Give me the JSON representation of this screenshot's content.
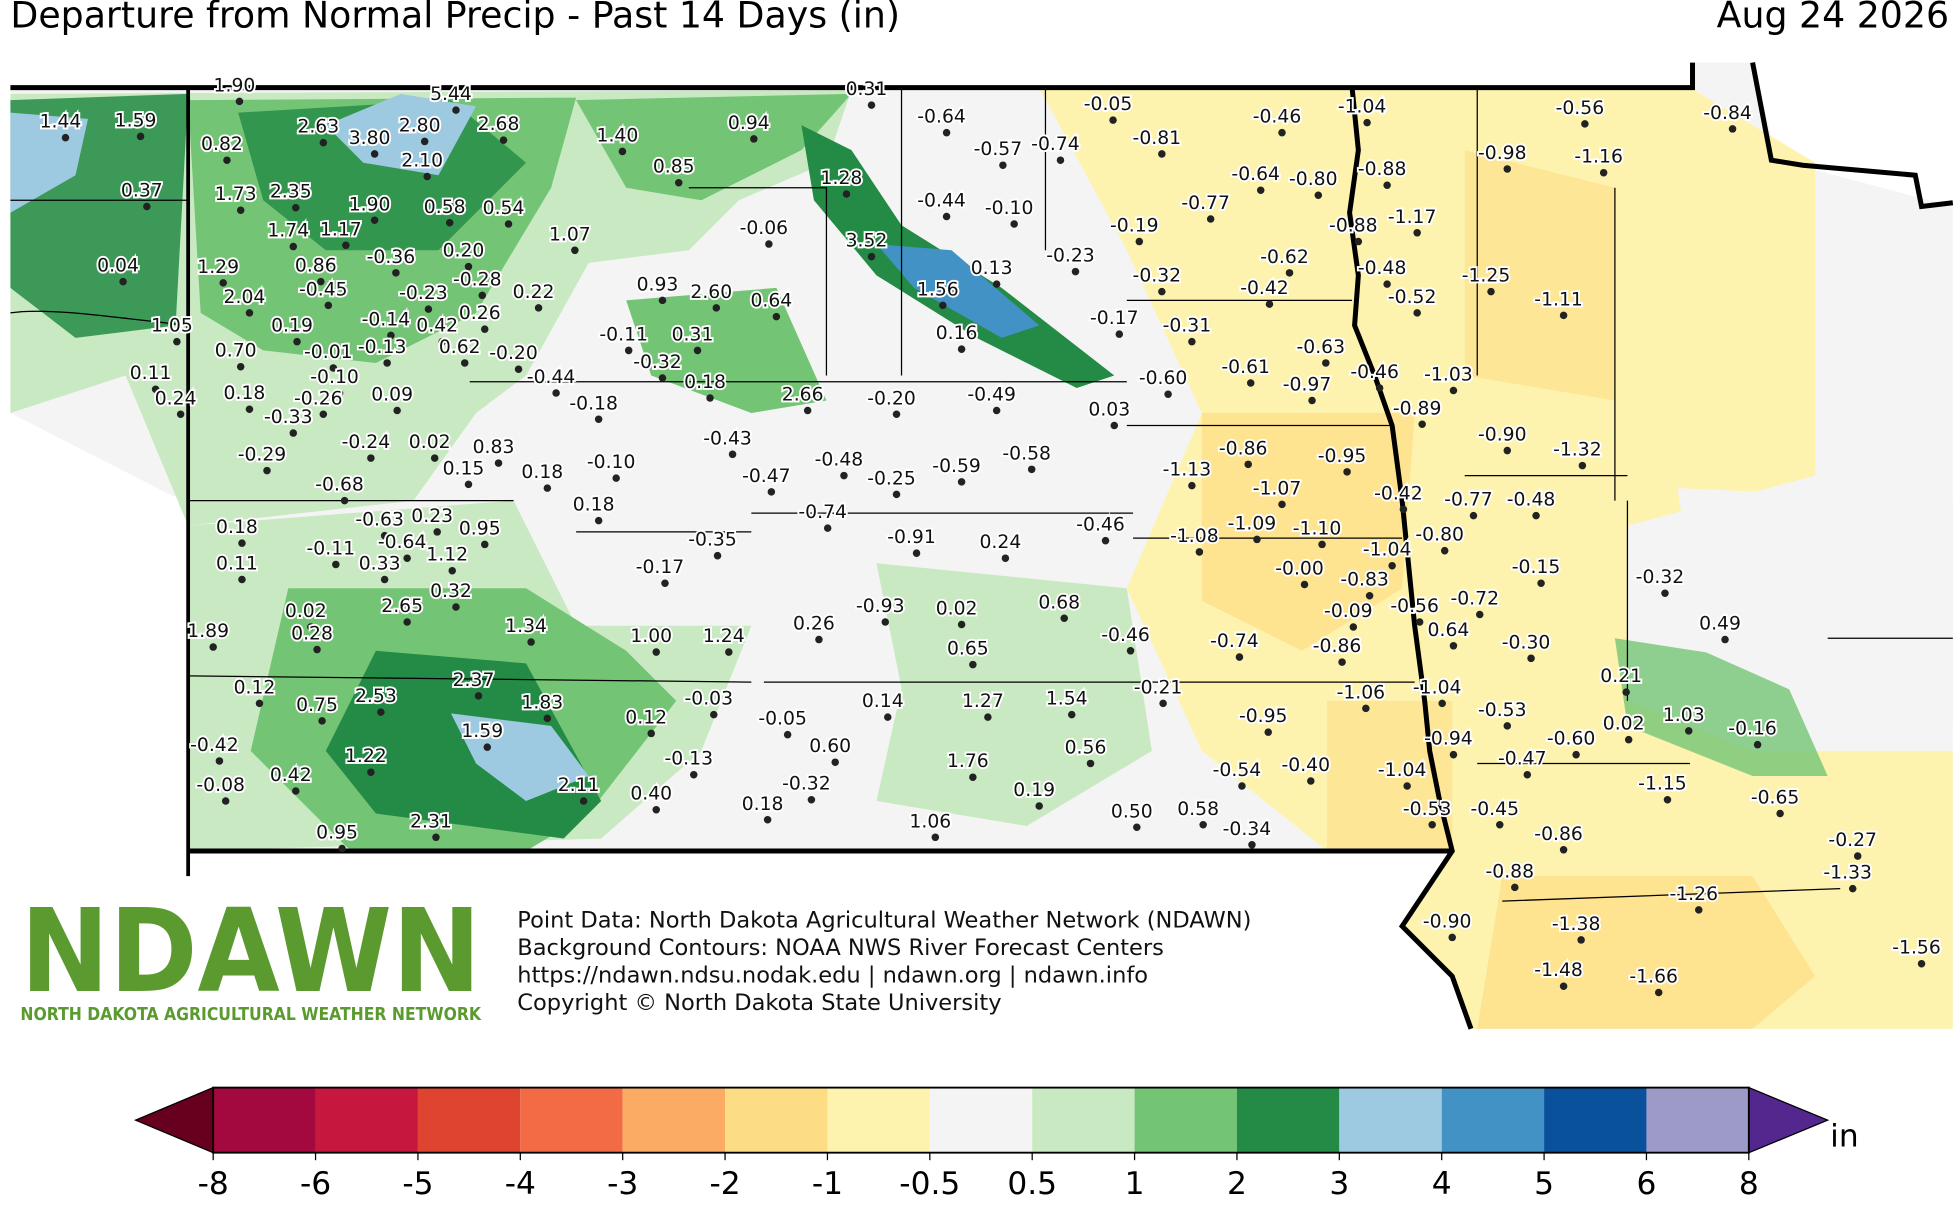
{
  "header": {
    "title": "Departure from Normal Precip - Past 14 Days (in)",
    "date": "Aug 24 2026"
  },
  "map": {
    "values": [
      1.44,
      1.59,
      1.9,
      5.44,
      0.31,
      -0.05,
      -1.04,
      -0.56,
      -0.84,
      0.82,
      2.63,
      3.8,
      2.8,
      2.68,
      1.4,
      0.94,
      -0.64,
      -0.46,
      0.37,
      2.1,
      0.85,
      -0.57,
      -0.74,
      -0.81,
      -0.98,
      -1.16,
      1.73,
      2.35,
      1.9,
      0.58,
      0.54,
      1.28,
      -0.44,
      -0.1,
      -0.64,
      -0.8,
      -0.88,
      1.74,
      1.17,
      1.07,
      -0.06,
      3.52,
      -0.77,
      -0.19,
      -0.88,
      -1.17,
      0.04,
      1.29,
      0.86,
      -0.36,
      0.2,
      0.13,
      -0.23,
      -0.62,
      -0.48,
      2.04,
      -0.45,
      -0.23,
      -0.28,
      0.22,
      0.93,
      2.6,
      0.64,
      1.56,
      -0.32,
      -0.42,
      -0.52,
      -1.25,
      -1.11,
      1.05,
      0.7,
      0.19,
      -0.14,
      0.42,
      0.26,
      -0.11,
      0.31,
      0.16,
      -0.17,
      -0.31,
      -0.63,
      -0.01,
      -0.13,
      0.62,
      -0.2,
      -0.32,
      -0.46,
      -1.03,
      0.11,
      0.18,
      -0.1,
      -0.26,
      0.09,
      -0.44,
      0.18,
      -0.18,
      2.66,
      -0.2,
      -0.49,
      0.03,
      -0.6,
      -0.61,
      -0.97,
      0.24,
      -0.33,
      -0.89,
      -0.9,
      -0.29,
      -0.24,
      0.02,
      0.83,
      -0.43,
      -0.48,
      -0.58,
      -0.86,
      -0.95,
      -1.32,
      -0.68,
      0.15,
      0.18,
      -0.1,
      -0.47,
      -0.25,
      -0.59,
      -1.13,
      -1.07,
      -0.42,
      -0.77,
      -0.48,
      -0.63,
      0.23,
      0.18,
      -0.74,
      -0.46,
      -1.09,
      -1.1,
      -1.08,
      -0.8,
      0.18,
      -0.11,
      -0.64,
      0.95,
      -0.35,
      -0.91,
      0.24,
      -1.04,
      0.11,
      0.33,
      1.12,
      -0.17,
      -0.0,
      -0.83,
      -0.15,
      -0.32,
      0.32,
      -0.72,
      0.68,
      -0.93,
      0.02,
      -0.09,
      -0.56,
      0.02,
      2.65,
      0.26,
      0.64,
      0.49,
      1.89,
      0.28,
      1.34,
      1.0,
      1.24,
      -0.46,
      -0.74,
      -0.86,
      -0.3,
      0.65,
      0.21,
      0.12,
      2.37,
      -0.21,
      -1.06,
      -1.04,
      0.75,
      2.53,
      1.83,
      -0.03,
      0.14,
      1.27,
      1.54,
      -0.53,
      1.03,
      -0.05,
      0.12,
      -0.95,
      0.02,
      -0.16,
      -0.6,
      -0.94,
      1.59,
      -0.42,
      0.6,
      0.56,
      1.22,
      1.76,
      -0.13,
      -0.47,
      -0.4,
      -0.54,
      -1.04,
      -0.08,
      0.42,
      2.11,
      -0.32,
      0.4,
      0.19,
      -1.15,
      -0.65,
      0.18,
      0.5,
      0.58,
      -0.53,
      -0.45,
      -0.86,
      2.31,
      1.06,
      -0.34,
      -0.27,
      0.95,
      -0.88,
      -1.33,
      -1.26,
      -0.9,
      -1.38,
      -1.48,
      -1.66,
      -1.56
    ],
    "value_labels": [
      "1.44",
      "1.59",
      "1.90",
      "5.44",
      "0.31",
      "-0.05",
      "-1.04",
      "-0.56",
      "-0.84",
      "0.82",
      "2.63",
      "3.80",
      "2.80",
      "2.68",
      "1.40",
      "0.94",
      "-0.64",
      "-0.46",
      "0.37",
      "2.10",
      "0.85",
      "-0.57",
      "-0.74",
      "-0.81",
      "-0.98",
      "-1.16",
      "1.73",
      "2.35",
      "1.90",
      "0.58",
      "0.54",
      "1.28",
      "-0.44",
      "-0.10",
      "-0.64",
      "-0.80",
      "-0.88",
      "1.74",
      "1.17",
      "1.07",
      "-0.06",
      "3.52",
      "-0.77",
      "-0.19",
      "-0.88",
      "-1.17",
      "0.04",
      "1.29",
      "0.86",
      "-0.36",
      "0.20",
      "0.13",
      "-0.23",
      "-0.62",
      "-0.48",
      "2.04",
      "-0.45",
      "-0.23",
      "-0.28",
      "0.22",
      "0.93",
      "2.60",
      "0.64",
      "1.56",
      "-0.32",
      "-0.42",
      "-0.52",
      "-1.25",
      "-1.11",
      "1.05",
      "0.70",
      "0.19",
      "-0.14",
      "0.42",
      "0.26",
      "-0.11",
      "0.31",
      "0.16",
      "-0.17",
      "-0.31",
      "-0.63",
      "-0.01",
      "-0.13",
      "0.62",
      "-0.20",
      "-0.32",
      "-0.46",
      "-1.03",
      "0.11",
      "0.18",
      "-0.10",
      "-0.26",
      "0.09",
      "-0.44",
      "0.18",
      "-0.18",
      "2.66",
      "-0.20",
      "-0.49",
      "0.03",
      "-0.60",
      "-0.61",
      "-0.97",
      "0.24",
      "-0.33",
      "-0.89",
      "-0.90",
      "-0.29",
      "-0.24",
      "0.02",
      "0.83",
      "-0.43",
      "-0.48",
      "-0.58",
      "-0.86",
      "-0.95",
      "-1.32",
      "-0.68",
      "0.15",
      "0.18",
      "-0.10",
      "-0.47",
      "-0.25",
      "-0.59",
      "-1.13",
      "-1.07",
      "-0.42",
      "-0.77",
      "-0.48",
      "-0.63",
      "0.23",
      "0.18",
      "-0.74",
      "-0.46",
      "-1.09",
      "-1.10",
      "-1.08",
      "-0.80",
      "0.18",
      "-0.11",
      "-0.64",
      "0.95",
      "-0.35",
      "-0.91",
      "0.24",
      "-1.04",
      "0.11",
      "0.33",
      "1.12",
      "-0.17",
      "-0.00",
      "-0.83",
      "-0.15",
      "-0.32",
      "0.32",
      "-0.72",
      "0.68",
      "-0.93",
      "0.02",
      "-0.09",
      "-0.56",
      "0.02",
      "2.65",
      "0.26",
      "0.64",
      "0.49",
      "1.89",
      "0.28",
      "1.34",
      "1.00",
      "1.24",
      "-0.46",
      "-0.74",
      "-0.86",
      "-0.30",
      "0.65",
      "0.21",
      "0.12",
      "2.37",
      "-0.21",
      "-1.06",
      "-1.04",
      "0.75",
      "2.53",
      "1.83",
      "-0.03",
      "0.14",
      "1.27",
      "1.54",
      "-0.53",
      "1.03",
      "-0.05",
      "0.12",
      "-0.95",
      "0.02",
      "-0.16",
      "-0.60",
      "-0.94",
      "1.59",
      "-0.42",
      "0.60",
      "0.56",
      "1.22",
      "1.76",
      "-0.13",
      "-0.47",
      "-0.40",
      "-0.54",
      "-1.04",
      "-0.08",
      "0.42",
      "2.11",
      "-0.32",
      "0.40",
      "0.19",
      "-1.15",
      "-0.65",
      "0.18",
      "0.50",
      "0.58",
      "-0.53",
      "-0.45",
      "-0.86",
      "2.31",
      "1.06",
      "-0.34",
      "-0.27",
      "0.95",
      "-0.88",
      "-1.33",
      "-1.26",
      "-0.90",
      "-1.38",
      "-1.48",
      "-1.66",
      "-1.56"
    ]
  },
  "logo": {
    "abbr": "NDAWN",
    "name": "NORTH DAKOTA AGRICULTURAL WEATHER NETWORK"
  },
  "credits": [
    "Point Data: North Dakota Agricultural Weather Network (NDAWN)",
    "Background Contours: NOAA NWS River Forecast Centers",
    "https://ndawn.ndsu.nodak.edu | ndawn.org | ndawn.info",
    "Copyright © North Dakota State University"
  ],
  "colorbar": {
    "ticks": [
      -8,
      -6,
      -5,
      -4,
      -3,
      -2,
      -1,
      -0.5,
      0.5,
      1,
      2,
      3,
      4,
      5,
      6,
      8
    ],
    "colors": [
      "#a3093f",
      "#c6173f",
      "#df4431",
      "#f36b45",
      "#fcab62",
      "#fddd84",
      "#fdf3ae",
      "#f4f4f4",
      "#c8e9c1",
      "#74c476",
      "#238b45",
      "#9ecae1",
      "#4292c6",
      "#0a519c",
      "#9e9ac8"
    ],
    "under_color": "#67001f",
    "over_color": "#54278f",
    "unit": "in"
  }
}
